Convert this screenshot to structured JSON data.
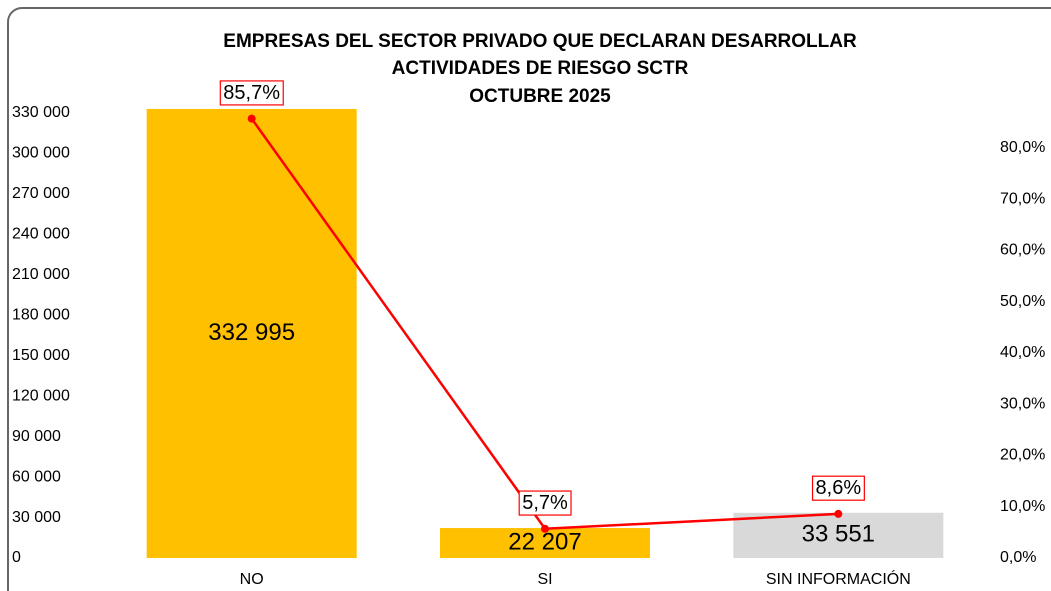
{
  "chart_data": {
    "type": "bar_line",
    "title": [
      "EMPRESAS DEL SECTOR PRIVADO QUE DECLARAN DESARROLLAR",
      "ACTIVIDADES DE RIESGO SCTR",
      "OCTUBRE 2025"
    ],
    "categories": [
      "NO",
      "SI",
      "SIN INFORMACIÓN"
    ],
    "series": [
      {
        "type": "bar",
        "values": [
          332995,
          22207,
          33551
        ],
        "value_labels": [
          "332 995",
          "22 207",
          "33 551"
        ],
        "colors": [
          "#FFC000",
          "#FFC000",
          "#D9D9D9"
        ]
      },
      {
        "type": "line",
        "axis": "y2",
        "values": [
          85.7,
          5.7,
          8.6
        ],
        "value_labels": [
          "85,7%",
          "5,7%",
          "8,6%"
        ],
        "color": "#FF0000"
      }
    ],
    "ylim": [
      0,
      330000
    ],
    "yticks": [
      0,
      {
        "value": 30000,
        "label": "30 000"
      },
      {
        "value": 60000,
        "label": "60 000"
      },
      {
        "value": 90000,
        "label": "90 000"
      },
      {
        "value": 120000,
        "label": "120 000"
      },
      {
        "value": 150000,
        "label": "150 000"
      },
      {
        "value": 180000,
        "label": "180 000"
      },
      {
        "value": 210000,
        "label": "210 000"
      },
      {
        "value": 240000,
        "label": "240 000"
      },
      {
        "value": 270000,
        "label": "270 000"
      },
      {
        "value": 300000,
        "label": "300 000"
      },
      {
        "value": 330000,
        "label": "330 000"
      }
    ],
    "y2lim": [
      0,
      86.8
    ],
    "y2ticks": [
      {
        "value": 0,
        "label": "0,0%"
      },
      {
        "value": 10,
        "label": "10,0%"
      },
      {
        "value": 20,
        "label": "20,0%"
      },
      {
        "value": 30,
        "label": "30,0%"
      },
      {
        "value": 40,
        "label": "40,0%"
      },
      {
        "value": 50,
        "label": "50,0%"
      },
      {
        "value": 60,
        "label": "60,0%"
      },
      {
        "value": 70,
        "label": "70,0%"
      },
      {
        "value": 80,
        "label": "80,0%"
      }
    ],
    "grid": false
  }
}
